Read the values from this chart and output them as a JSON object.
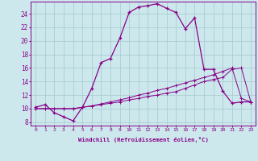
{
  "xlabel": "Windchill (Refroidissement éolien,°C)",
  "background_color": "#cce8ec",
  "grid_color": "#aacdd4",
  "line_color": "#880088",
  "x_ticks": [
    0,
    1,
    2,
    3,
    4,
    5,
    6,
    7,
    8,
    9,
    10,
    11,
    12,
    13,
    14,
    15,
    16,
    17,
    18,
    19,
    20,
    21,
    22,
    23
  ],
  "y_ticks": [
    8,
    10,
    12,
    14,
    16,
    18,
    20,
    22,
    24
  ],
  "xlim": [
    -0.5,
    23.5
  ],
  "ylim": [
    7.5,
    25.8
  ],
  "series1_x": [
    0,
    1,
    2,
    3,
    4,
    5,
    6,
    7,
    8,
    9,
    10,
    11,
    12,
    13,
    14,
    15,
    16,
    17,
    18,
    19,
    20,
    21,
    22,
    23
  ],
  "series1_y": [
    10.2,
    10.6,
    9.4,
    8.8,
    8.2,
    10.2,
    13.0,
    16.8,
    17.4,
    20.4,
    24.2,
    25.0,
    25.2,
    25.5,
    24.8,
    24.2,
    21.8,
    23.4,
    15.8,
    15.8,
    12.6,
    10.8,
    11.0,
    11.0
  ],
  "series2_x": [
    0,
    1,
    2,
    3,
    4,
    5,
    6,
    7,
    8,
    9,
    10,
    11,
    12,
    13,
    14,
    15,
    16,
    17,
    18,
    19,
    20,
    21,
    22,
    23
  ],
  "series2_y": [
    10.0,
    10.0,
    10.0,
    10.0,
    10.0,
    10.2,
    10.4,
    10.6,
    10.8,
    11.0,
    11.3,
    11.5,
    11.8,
    12.0,
    12.3,
    12.5,
    13.0,
    13.5,
    14.0,
    14.3,
    14.6,
    15.8,
    16.0,
    11.0
  ],
  "series3_x": [
    0,
    1,
    2,
    3,
    4,
    5,
    6,
    7,
    8,
    9,
    10,
    11,
    12,
    13,
    14,
    15,
    16,
    17,
    18,
    19,
    20,
    21,
    22,
    23
  ],
  "series3_y": [
    10.0,
    10.0,
    10.0,
    10.0,
    10.0,
    10.2,
    10.4,
    10.7,
    11.0,
    11.3,
    11.6,
    12.0,
    12.3,
    12.7,
    13.0,
    13.4,
    13.8,
    14.2,
    14.6,
    15.0,
    15.5,
    16.0,
    11.5,
    11.0
  ]
}
